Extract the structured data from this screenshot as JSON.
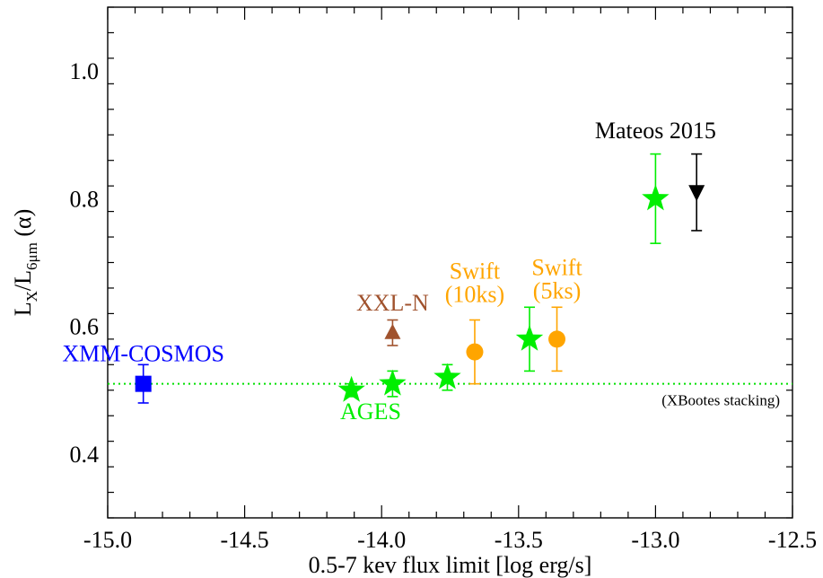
{
  "chart_data": {
    "type": "scatter",
    "xlabel": "0.5-7 kev flux limit [log erg/s]",
    "ylabel": {
      "base": "L",
      "sub1": "X",
      "mid": "/L",
      "sub2": "6μm",
      "tail": " (α)"
    },
    "xlim": [
      -15.0,
      -12.5
    ],
    "ylim": [
      0.3,
      1.1
    ],
    "xticks": [
      -15.0,
      -14.5,
      -14.0,
      -13.5,
      -13.0,
      -12.5
    ],
    "xtick_labels": [
      "-15.0",
      "-14.5",
      "-14.0",
      "-13.5",
      "-13.0",
      "-12.5"
    ],
    "yticks": [
      0.4,
      0.6,
      0.8,
      1.0
    ],
    "ytick_labels": [
      "0.4",
      "0.6",
      "0.8",
      "1.0"
    ],
    "grid": false,
    "reference_line": {
      "y": 0.51,
      "label": "(XBootes stacking)",
      "color": "#00e000",
      "style": "dotted"
    },
    "series": [
      {
        "name": "XMM-COSMOS",
        "marker": "square",
        "color": "#0000ff",
        "points": [
          {
            "x": -14.87,
            "y": 0.51,
            "ylo": 0.48,
            "yhi": 0.54
          }
        ]
      },
      {
        "name": "AGES",
        "marker": "star",
        "color": "#00ee00",
        "points": [
          {
            "x": -14.11,
            "y": 0.5,
            "ylo": 0.49,
            "yhi": 0.51
          },
          {
            "x": -13.96,
            "y": 0.51,
            "ylo": 0.49,
            "yhi": 0.53
          },
          {
            "x": -13.76,
            "y": 0.52,
            "ylo": 0.5,
            "yhi": 0.54
          }
        ]
      },
      {
        "name": "XXL-N",
        "marker": "triangle-up",
        "color": "#a0522d",
        "points": [
          {
            "x": -13.96,
            "y": 0.59,
            "ylo": 0.57,
            "yhi": 0.61
          }
        ]
      },
      {
        "name": "Swift (10ks)",
        "marker": "circle",
        "color": "#ffa500",
        "points": [
          {
            "x": -13.66,
            "y": 0.56,
            "ylo": 0.51,
            "yhi": 0.61
          }
        ]
      },
      {
        "name": "Swift (5ks)",
        "marker": "circle",
        "color": "#ffa500",
        "points": [
          {
            "x": -13.36,
            "y": 0.58,
            "ylo": 0.53,
            "yhi": 0.63
          }
        ]
      },
      {
        "name": "",
        "marker": "star",
        "color": "#00ee00",
        "points": [
          {
            "x": -13.46,
            "y": 0.58,
            "ylo": 0.53,
            "yhi": 0.63
          },
          {
            "x": -13.0,
            "y": 0.8,
            "ylo": 0.73,
            "yhi": 0.87
          }
        ]
      },
      {
        "name": "Mateos 2015",
        "marker": "triangle-down",
        "color": "#000000",
        "points": [
          {
            "x": -12.85,
            "y": 0.81,
            "ylo": 0.75,
            "yhi": 0.87
          }
        ]
      }
    ],
    "annotations": [
      {
        "id": "xmm",
        "lines": [
          "XMM-COSMOS"
        ],
        "color": "#0000ff",
        "x": -14.87,
        "y": 0.545
      },
      {
        "id": "ages",
        "lines": [
          "AGES"
        ],
        "color": "#00ee00",
        "x": -14.04,
        "y": 0.455
      },
      {
        "id": "xxl",
        "lines": [
          "XXL-N"
        ],
        "color": "#a0522d",
        "x": -13.96,
        "y": 0.625
      },
      {
        "id": "swift10",
        "lines": [
          "Swift",
          "(10ks)"
        ],
        "color": "#ffa500",
        "x": -13.66,
        "y": 0.675
      },
      {
        "id": "swift5",
        "lines": [
          "Swift",
          "(5ks)"
        ],
        "color": "#ffa500",
        "x": -13.36,
        "y": 0.68
      },
      {
        "id": "mateos",
        "lines": [
          "Mateos 2015"
        ],
        "color": "#000000",
        "x": -13.0,
        "y": 0.895
      }
    ]
  }
}
